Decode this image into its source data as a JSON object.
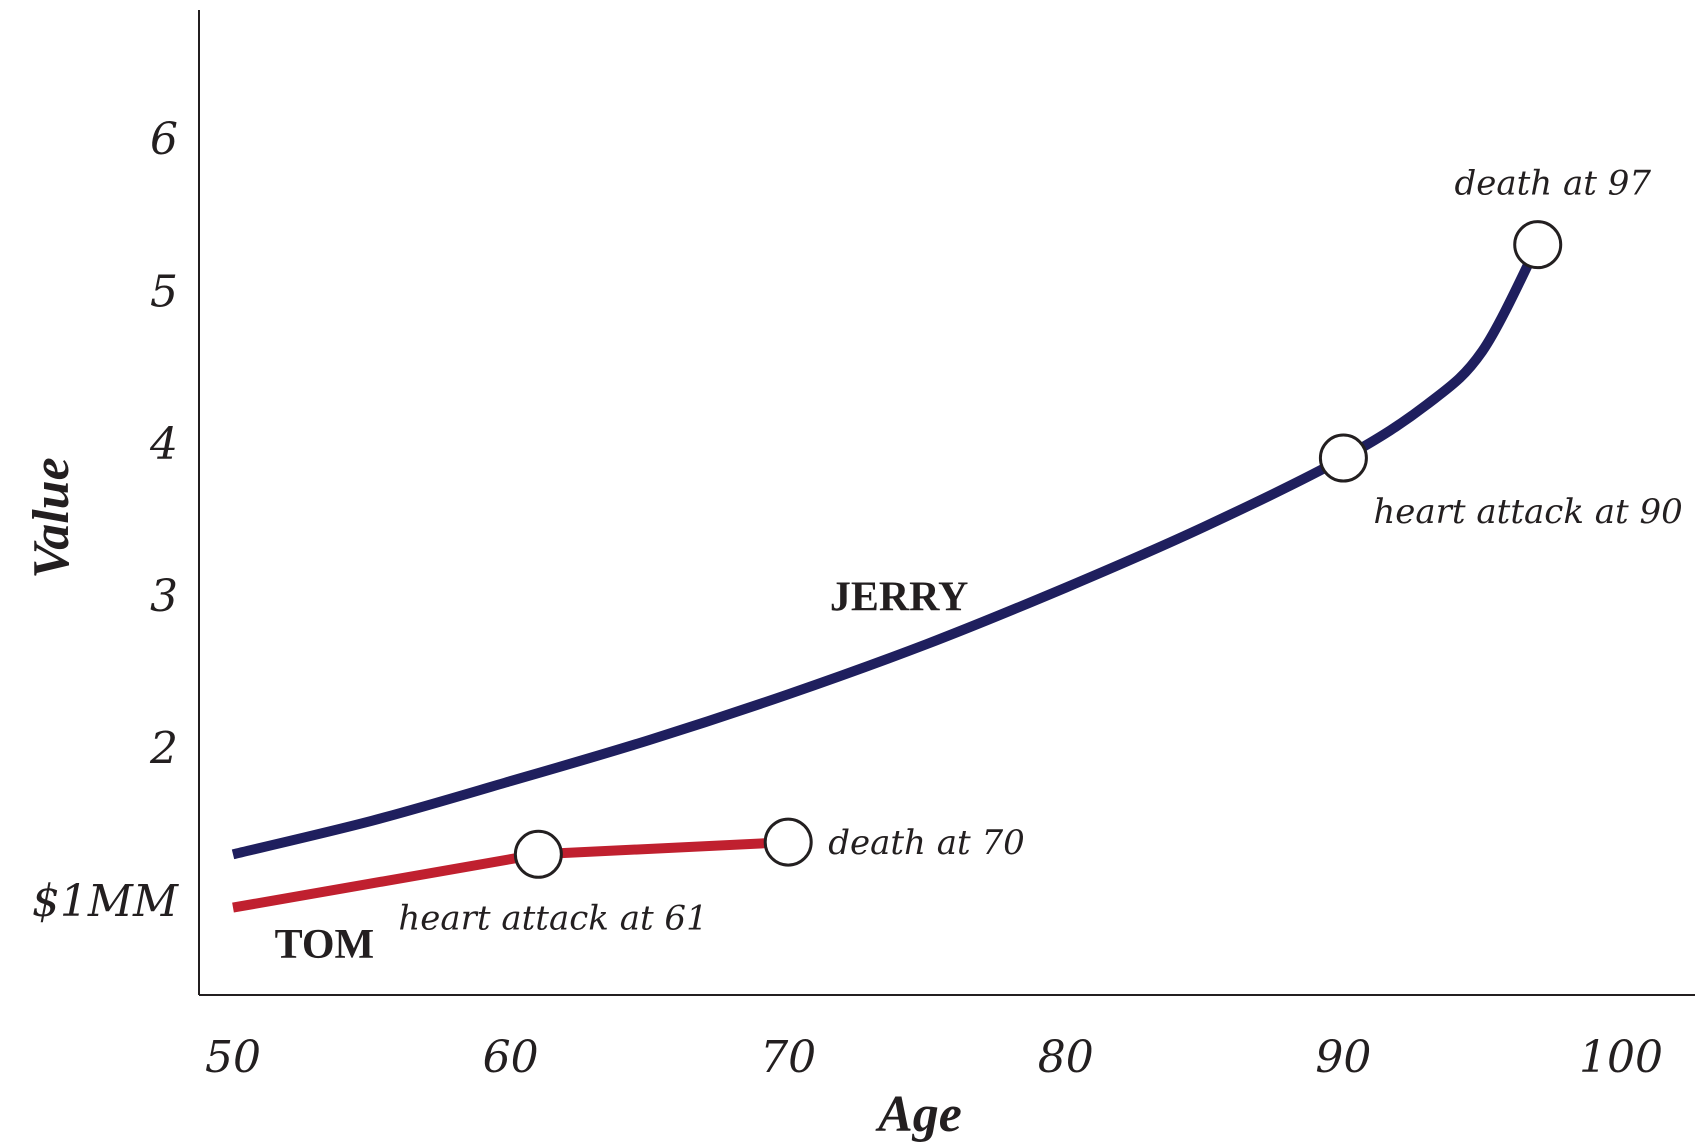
{
  "chart_data": {
    "type": "line",
    "xlabel": "Age",
    "ylabel": "Value",
    "xlim": [
      50,
      100
    ],
    "ylim": [
      0.3,
      6.8
    ],
    "x_ticks": [
      {
        "value": 50,
        "label": "50"
      },
      {
        "value": 60,
        "label": "60"
      },
      {
        "value": 70,
        "label": "70"
      },
      {
        "value": 80,
        "label": "80"
      },
      {
        "value": 90,
        "label": "90"
      },
      {
        "value": 100,
        "label": "100"
      }
    ],
    "y_ticks": [
      {
        "value": 1,
        "label": "$1MM"
      },
      {
        "value": 2,
        "label": "2"
      },
      {
        "value": 3,
        "label": "3"
      },
      {
        "value": 4,
        "label": "4"
      },
      {
        "value": 5,
        "label": "5"
      },
      {
        "value": 6,
        "label": "6"
      }
    ],
    "grid": false,
    "series": [
      {
        "name": "JERRY",
        "color": "#1f1f5e",
        "x": [
          50,
          55,
          60,
          65,
          70,
          75,
          80,
          85,
          90,
          93,
          95,
          97
        ],
        "y": [
          1.3,
          1.52,
          1.78,
          2.05,
          2.35,
          2.68,
          3.05,
          3.45,
          3.9,
          4.25,
          4.6,
          5.3
        ]
      },
      {
        "name": "TOM",
        "color": "#c0202f",
        "x": [
          50,
          61,
          70
        ],
        "y": [
          0.95,
          1.3,
          1.38
        ]
      }
    ],
    "series_labels": [
      {
        "series": "JERRY",
        "text": "JERRY",
        "x": 71.5,
        "y": 2.9
      },
      {
        "series": "TOM",
        "text": "TOM",
        "x": 51.5,
        "y": 0.62
      }
    ],
    "annotations": [
      {
        "text": "heart attack at 61",
        "x": 61,
        "y": 1.3,
        "label_position": "below"
      },
      {
        "text": "death at 70",
        "x": 70,
        "y": 1.38,
        "label_position": "right"
      },
      {
        "text": "heart attack at 90",
        "x": 90,
        "y": 3.9,
        "label_position": "below-right"
      },
      {
        "text": "death at 97",
        "x": 97,
        "y": 5.3,
        "label_position": "above"
      }
    ]
  }
}
